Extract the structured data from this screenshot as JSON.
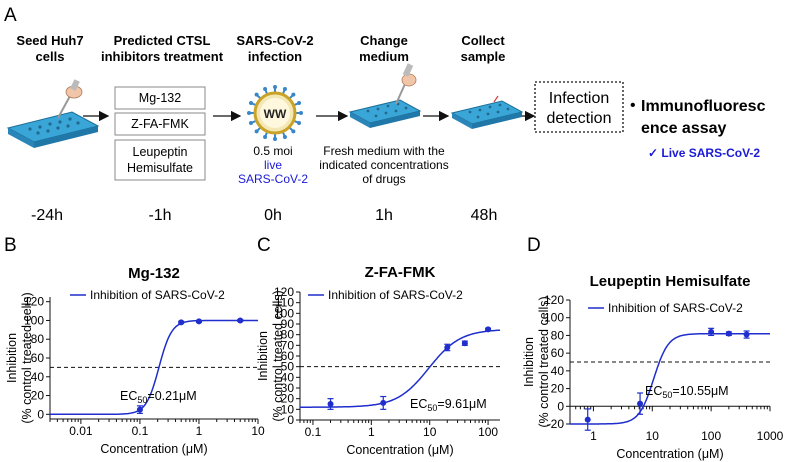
{
  "panel_labels": [
    "A",
    "B",
    "C",
    "D"
  ],
  "schematic": {
    "steps": [
      {
        "title": [
          "Seed Huh7",
          "cells"
        ],
        "time": "-24h"
      },
      {
        "title": [
          "Predicted CTSL",
          "inhibitors treatment"
        ],
        "time": "-1h"
      },
      {
        "title": [
          "SARS-CoV-2",
          "infection"
        ],
        "time": "0h"
      },
      {
        "title": [
          "Change",
          "medium"
        ],
        "time": "1h"
      },
      {
        "title": [
          "Collect",
          "sample"
        ],
        "time": "48h"
      }
    ],
    "drug_boxes": [
      [
        "Mg-132"
      ],
      [
        "Z-FA-FMK"
      ],
      [
        "Leupeptin",
        "Hemisulfate"
      ]
    ],
    "virus_label": "WW",
    "infection_info": [
      "0.5 moi",
      "live",
      "SARS-CoV-2"
    ],
    "medium_info": [
      "Fresh medium with the",
      "indicated concentrations",
      "of drugs"
    ],
    "detection_box": [
      "Infection",
      "detection"
    ],
    "assay": [
      "Immunofluoresc",
      "ence assay"
    ],
    "assay_bullet": "•",
    "assay_check": "✓ Live SARS-CoV-2"
  },
  "colors": {
    "curve": "#1f2ecc",
    "plate": "#3aa6d8",
    "virus_ring": "#c9a227",
    "virus_spike": "#3a86c8",
    "blue_text": "#1a1ad6"
  },
  "chart_data": [
    {
      "type": "line",
      "panel": "B",
      "title": "Mg-132",
      "xlabel": "Concentration (μM)",
      "ylabel": [
        "Inhibition",
        "(% control treated cells)"
      ],
      "xscale": "log",
      "xlim": [
        0.003,
        10
      ],
      "ylim": [
        -5,
        125
      ],
      "xticks": [
        0.01,
        0.1,
        1,
        10
      ],
      "xtick_labels": [
        "0.01",
        "0.1",
        "1",
        "10"
      ],
      "yticks": [
        0,
        20,
        40,
        60,
        80,
        100,
        120
      ],
      "ytick_labels": [
        "0",
        "20",
        "40",
        "60",
        "80",
        "100",
        "120"
      ],
      "legend": "Inhibition of SARS-CoV-2",
      "ec50_label": "EC",
      "ec50_sub": "50",
      "ec50_value": "=0.21μM",
      "points": [
        {
          "x": 0.1,
          "y": 5,
          "err": 4
        },
        {
          "x": 0.5,
          "y": 98,
          "err": 1
        },
        {
          "x": 1,
          "y": 99,
          "err": 1
        },
        {
          "x": 5,
          "y": 100,
          "err": 1
        }
      ],
      "fit": {
        "bottom": 0,
        "top": 100,
        "ec50": 0.21,
        "hill": 4
      },
      "threshold": 50
    },
    {
      "type": "line",
      "panel": "C",
      "title": "Z-FA-FMK",
      "xlabel": "Concentration (μM)",
      "ylabel": [
        "Inhibition",
        "(% control treated cells)"
      ],
      "xscale": "log",
      "xlim": [
        0.06,
        160
      ],
      "ylim": [
        0,
        120
      ],
      "xticks": [
        0.1,
        1,
        10,
        100
      ],
      "xtick_labels": [
        "0.1",
        "1",
        "10",
        "100"
      ],
      "yticks": [
        0,
        10,
        20,
        30,
        40,
        50,
        60,
        70,
        80,
        90,
        100,
        110,
        120
      ],
      "ytick_labels": [
        "0",
        "10",
        "20",
        "30",
        "40",
        "50",
        "60",
        "70",
        "80",
        "90",
        "100",
        "110",
        "120"
      ],
      "legend": "Inhibition of SARS-CoV-2",
      "ec50_label": "EC",
      "ec50_sub": "50",
      "ec50_value": "=9.61μM",
      "points": [
        {
          "x": 0.2,
          "y": 15,
          "err": 5
        },
        {
          "x": 1.6,
          "y": 16,
          "err": 6
        },
        {
          "x": 20,
          "y": 68,
          "err": 3
        },
        {
          "x": 40,
          "y": 72,
          "err": 2
        },
        {
          "x": 100,
          "y": 85,
          "err": 1
        }
      ],
      "fit": {
        "bottom": 12,
        "top": 85,
        "ec50": 9.61,
        "hill": 1.6
      },
      "threshold": 50
    },
    {
      "type": "line",
      "panel": "D",
      "title": "Leupeptin Hemisulfate",
      "xlabel": "Concentration (μM)",
      "ylabel": [
        "Inhibition",
        "(% control treated cells)"
      ],
      "xscale": "log",
      "xlim": [
        0.4,
        1000
      ],
      "ylim": [
        -20,
        120
      ],
      "xticks": [
        1,
        10,
        100,
        1000
      ],
      "xtick_labels": [
        "1",
        "10",
        "100",
        "1000"
      ],
      "yticks": [
        -20,
        0,
        20,
        40,
        60,
        80,
        100,
        120
      ],
      "ytick_labels": [
        "-20",
        "0",
        "20",
        "40",
        "60",
        "80",
        "100",
        "120"
      ],
      "legend": "Inhibition of SARS-CoV-2",
      "ec50_label": "EC",
      "ec50_sub": "50",
      "ec50_value": "=10.55μM",
      "points": [
        {
          "x": 0.8,
          "y": -15,
          "err": 12
        },
        {
          "x": 6.2,
          "y": 3,
          "err": 12
        },
        {
          "x": 100,
          "y": 84,
          "err": 4
        },
        {
          "x": 200,
          "y": 82,
          "err": 2
        },
        {
          "x": 400,
          "y": 81,
          "err": 4
        }
      ],
      "fit": {
        "bottom": -20,
        "top": 82,
        "ec50": 10.55,
        "hill": 3.5
      },
      "threshold": 50
    }
  ]
}
